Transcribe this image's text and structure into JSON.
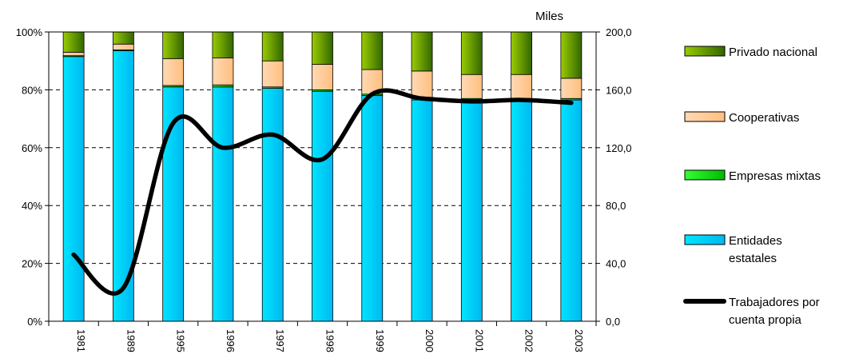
{
  "chart_data": {
    "type": "bar",
    "stacked": true,
    "normalized": true,
    "categories": [
      "1981",
      "1989",
      "1995",
      "1996",
      "1997",
      "1998",
      "1999",
      "2000",
      "2001",
      "2002",
      "2003"
    ],
    "y_left": {
      "ticks": [
        "0%",
        "20%",
        "40%",
        "60%",
        "80%",
        "100%"
      ],
      "range": [
        0,
        100
      ]
    },
    "y_right": {
      "unit_label": "Miles",
      "ticks": [
        "0,0",
        "40,0",
        "80,0",
        "120,0",
        "160,0",
        "200,0"
      ],
      "range": [
        0,
        200
      ]
    },
    "grid": "dashed horizontal",
    "legend_placement": "right",
    "series": [
      {
        "name": "Entidades estatales",
        "color": "#00ccff",
        "values": [
          91.5,
          93.5,
          81,
          81,
          80.5,
          79.5,
          78,
          76.5,
          76.5,
          76.5,
          76.5
        ]
      },
      {
        "name": "Empresas mixtas",
        "color": "#00dd00",
        "values": [
          0.3,
          0.3,
          0.5,
          0.7,
          0.5,
          0.5,
          0.5,
          0.5,
          0.5,
          0.5,
          0.5
        ]
      },
      {
        "name": "Cooperativas",
        "color": "#ffcc99",
        "values": [
          1.2,
          2,
          9.3,
          9.3,
          9,
          8.8,
          8.5,
          9.5,
          8.3,
          8.3,
          7
        ]
      },
      {
        "name": "Privado nacional",
        "color_from": "#99cc00",
        "color_to": "#336600",
        "values": [
          7,
          4.2,
          9.2,
          9,
          10,
          11.2,
          13,
          13.5,
          14.7,
          14.7,
          16
        ]
      }
    ],
    "line_series": {
      "name": "Trabajadores por cuenta propia",
      "axis": "right",
      "color": "#000000",
      "values": [
        46,
        23,
        137,
        120,
        129,
        112,
        157,
        154,
        152,
        153,
        151
      ]
    },
    "legend": [
      {
        "label": "Privado nacional",
        "swatch": "privado"
      },
      {
        "label": "Cooperativas",
        "swatch": "cooperativas"
      },
      {
        "label": "Empresas mixtas",
        "swatch": "mixtas"
      },
      {
        "label_lines": [
          "Entidades",
          "estatales"
        ],
        "swatch": "estatales"
      },
      {
        "label_lines": [
          "Trabajadores por",
          "cuenta propia"
        ],
        "swatch": "line"
      }
    ]
  }
}
